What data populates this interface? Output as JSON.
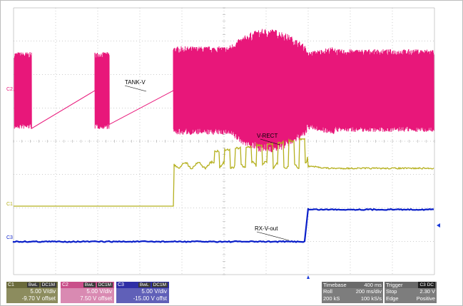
{
  "colors": {
    "ch1": "#b5b01e",
    "ch2": "#e8177a",
    "ch3": "#0a1fc9",
    "grid": "#9a9a9a",
    "trigger_marker": "#1a3ad8"
  },
  "channel_markers": {
    "c1": "C1",
    "c2": "C2",
    "c3": "C3"
  },
  "annotations": {
    "tank_v": "TANK-V",
    "v_rect": "V-RECT",
    "rx_v_out": "RX-V-out"
  },
  "channels": [
    {
      "id": "C1",
      "tags": [
        "BwL",
        "DC1M"
      ],
      "scale": "5.00 V/div",
      "offset": "-9.70 V offset"
    },
    {
      "id": "C2",
      "tags": [
        "BwL",
        "DC1M"
      ],
      "scale": "5.00 V/div",
      "offset": "7.50 V offset"
    },
    {
      "id": "C3",
      "tags": [
        "BwL",
        "DC1M"
      ],
      "scale": "5.00 V/div",
      "offset": "-15.00 V offst"
    }
  ],
  "timebase": {
    "title": "Timebase",
    "delay": "400 ms",
    "mode": "Roll",
    "per_div": "200 ms/div",
    "samples": "200 kS",
    "rate": "100 kS/s"
  },
  "trigger": {
    "title": "Trigger",
    "badge": "C3 DC",
    "state": "Stop",
    "level": "2.30 V",
    "type": "Edge",
    "slope": "Positive"
  }
}
